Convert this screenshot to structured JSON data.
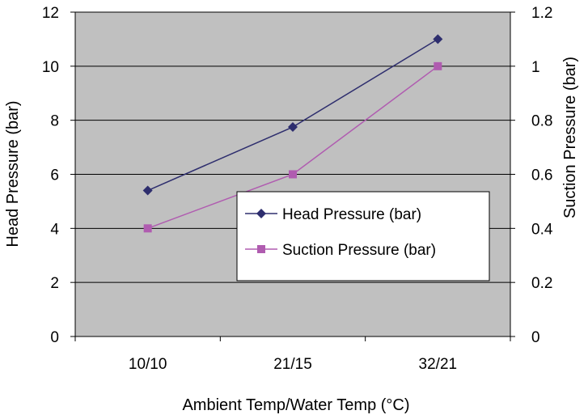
{
  "chart_data": {
    "type": "line",
    "categories": [
      "10/10",
      "21/15",
      "32/21"
    ],
    "xlabel": "Ambient Temp/Water Temp (°C)",
    "ylabel": "Head Pressure (bar)",
    "y2label": "Suction Pressure (bar)",
    "ylim": [
      0,
      12
    ],
    "y2lim": [
      0,
      1.2
    ],
    "yticks": [
      "0",
      "2",
      "4",
      "6",
      "8",
      "10",
      "12"
    ],
    "y2ticks": [
      "0",
      "0.2",
      "0.4",
      "0.6",
      "0.8",
      "1",
      "1.2"
    ],
    "grid": true,
    "plot_background": "#c0c0c0",
    "legend_position": "bottom-right",
    "series": [
      {
        "name": "Head Pressure (bar)",
        "axis": "left",
        "values": [
          5.4,
          7.75,
          11.0
        ],
        "color": "#2e2e6e",
        "marker": "diamond"
      },
      {
        "name": "Suction Pressure (bar)",
        "axis": "right",
        "values": [
          0.4,
          0.6,
          1.0
        ],
        "color": "#b05cb0",
        "marker": "square"
      }
    ]
  }
}
